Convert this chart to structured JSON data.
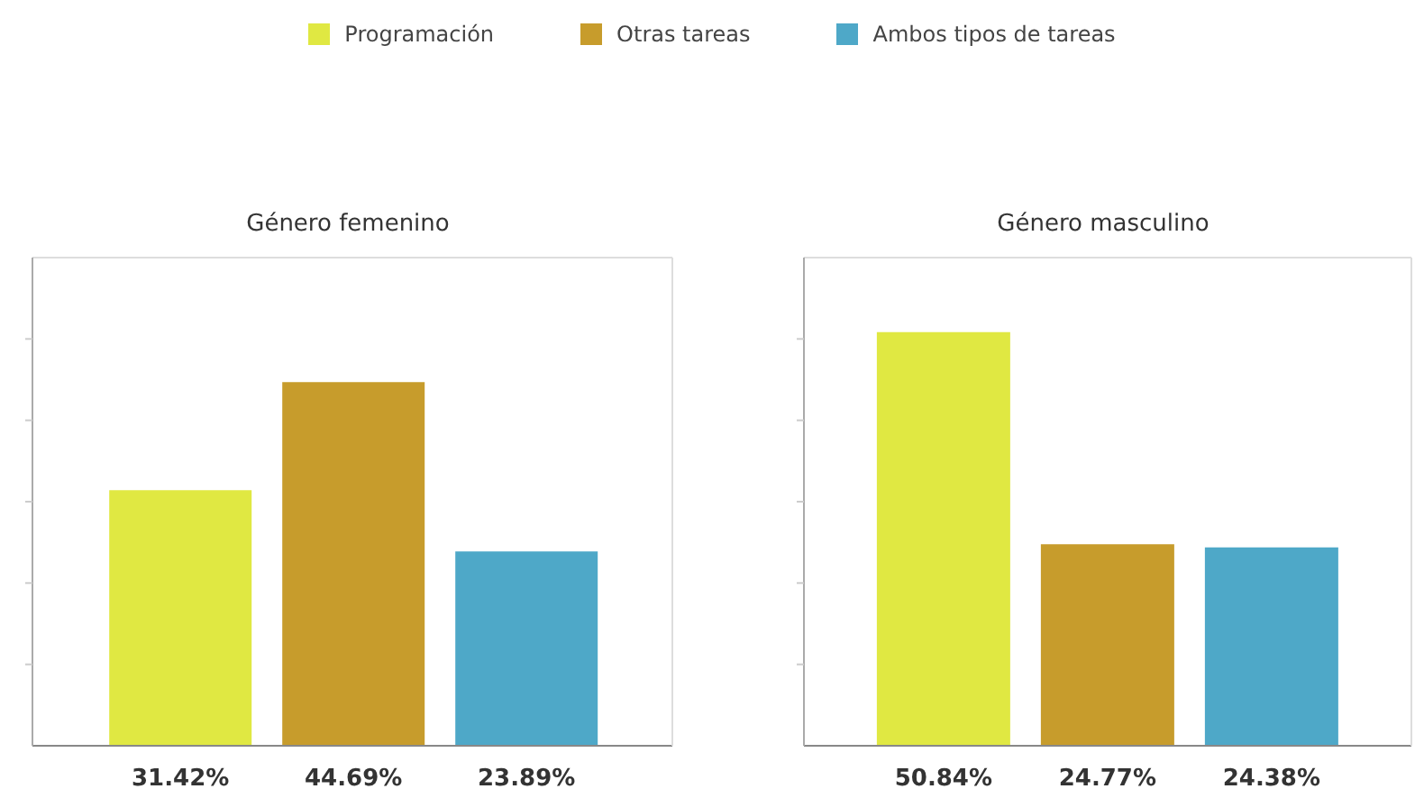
{
  "chart_data": [
    {
      "type": "bar",
      "title": "Género femenino",
      "categories": [
        null
      ],
      "series": [
        {
          "name": "Programación",
          "color": "#e0e842",
          "values": [
            31.42
          ],
          "value_labels": [
            "31.42%"
          ]
        },
        {
          "name": "Otras tareas",
          "color": "#c79c2c",
          "values": [
            44.69
          ],
          "value_labels": [
            "44.69%"
          ]
        },
        {
          "name": "Ambos tipos de tareas",
          "color": "#4ea8c8",
          "values": [
            23.89
          ],
          "value_labels": [
            "23.89%"
          ]
        }
      ],
      "ylim": [
        0,
        60
      ],
      "yticks": [
        {
          "value": 10,
          "label": null
        },
        {
          "value": 20,
          "label": null
        },
        {
          "value": 30,
          "label": null
        },
        {
          "value": 40,
          "label": null
        },
        {
          "value": 50,
          "label": null
        }
      ],
      "legend": "top"
    },
    {
      "type": "bar",
      "title": "Género masculino",
      "categories": [
        null
      ],
      "series": [
        {
          "color": "#e0e842",
          "values": [
            50.84
          ],
          "value_labels": [
            "50.84%"
          ]
        },
        {
          "color": "#c79c2c",
          "values": [
            24.77
          ],
          "value_labels": [
            "24.77%"
          ]
        },
        {
          "color": "#4ea8c8",
          "values": [
            24.38
          ],
          "value_labels": [
            "24.38%"
          ]
        }
      ],
      "ylim": [
        0,
        60
      ],
      "yticks": [
        {
          "value": 10,
          "label": null
        },
        {
          "value": 20,
          "label": null
        },
        {
          "value": 30,
          "label": null
        },
        {
          "value": 40,
          "label": null
        },
        {
          "value": 50,
          "label": null
        }
      ]
    }
  ]
}
